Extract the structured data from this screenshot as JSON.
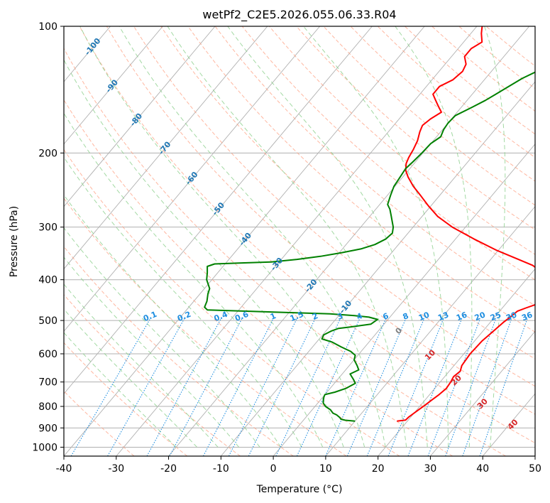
{
  "chart_data": {
    "type": "line",
    "title": "wetPf2_C2E5.2026.055.06.33.R04",
    "xlabel": "Temperature (°C)",
    "ylabel": "Pressure (hPa)",
    "xlim": [
      -40,
      50
    ],
    "ylim": [
      1050,
      100
    ],
    "y_scale": "log",
    "grid": true,
    "x_ticks": [
      -40,
      -30,
      -20,
      -10,
      0,
      10,
      20,
      30,
      40,
      50
    ],
    "y_ticks": [
      1000,
      900,
      800,
      700,
      600,
      500,
      400,
      300,
      200,
      100
    ],
    "colors": {
      "temperature": "#ff0000",
      "dewpoint": "#008000",
      "grid": "#b0b0b0",
      "dry_adiabat": "#ff9f80",
      "moist_adiabat": "#8ccf8c",
      "mixing_ratio": "#1e8ee0",
      "wetbulb_label": "#1f77b4",
      "temp_label": "#d62728",
      "zero_label": "#808080",
      "skewt_iso": "#b0b0b0",
      "curve_guides": "#d8b89a"
    },
    "series": [
      {
        "key": "temperature",
        "points": [
          [
            18,
            867
          ],
          [
            19.5,
            862
          ],
          [
            19.6,
            848
          ],
          [
            20.2,
            820
          ],
          [
            20.8,
            795
          ],
          [
            21.2,
            775
          ],
          [
            21.8,
            750
          ],
          [
            22.2,
            725
          ],
          [
            22.0,
            700
          ],
          [
            21.7,
            680
          ],
          [
            22.1,
            660
          ],
          [
            21.5,
            640
          ],
          [
            21.2,
            600
          ],
          [
            21.4,
            560
          ],
          [
            22.0,
            530
          ],
          [
            22.5,
            505
          ],
          [
            23.0,
            490
          ],
          [
            23.4,
            475
          ],
          [
            24.5,
            467
          ],
          [
            26.3,
            455
          ],
          [
            27.2,
            442
          ],
          [
            25.5,
            425
          ],
          [
            24.0,
            412
          ],
          [
            23.5,
            400
          ],
          [
            22.0,
            385
          ],
          [
            19.0,
            370
          ],
          [
            15.0,
            357
          ],
          [
            9.5,
            340
          ],
          [
            3.5,
            320
          ],
          [
            -2.5,
            300
          ],
          [
            -7.0,
            283
          ],
          [
            -10.5,
            267
          ],
          [
            -13.5,
            253
          ],
          [
            -16.5,
            240
          ],
          [
            -19.0,
            228
          ],
          [
            -20.5,
            220
          ],
          [
            -21.5,
            212
          ],
          [
            -22.0,
            205
          ],
          [
            -22.4,
            196
          ],
          [
            -23.0,
            187
          ],
          [
            -24.0,
            178
          ],
          [
            -24.5,
            172
          ],
          [
            -24.0,
            166
          ],
          [
            -23.0,
            160
          ],
          [
            -24.5,
            155
          ],
          [
            -26.0,
            150
          ],
          [
            -27.5,
            145
          ],
          [
            -27.5,
            139
          ],
          [
            -26.0,
            134
          ],
          [
            -25.5,
            128
          ],
          [
            -26.0,
            123
          ],
          [
            -27.5,
            118
          ],
          [
            -27.5,
            113
          ],
          [
            -26.5,
            109
          ],
          [
            -28.0,
            104
          ],
          [
            -29.0,
            100
          ]
        ]
      },
      {
        "key": "dewpoint",
        "points": [
          [
            10.0,
            867
          ],
          [
            8.0,
            863
          ],
          [
            7.0,
            858
          ],
          [
            6.5,
            850
          ],
          [
            5.5,
            838
          ],
          [
            4.5,
            830
          ],
          [
            3.5,
            815
          ],
          [
            2.0,
            800
          ],
          [
            1.0,
            785
          ],
          [
            0.5,
            770
          ],
          [
            0.2,
            760
          ],
          [
            0.0,
            750
          ],
          [
            1.5,
            740
          ],
          [
            3.0,
            725
          ],
          [
            4.0,
            705
          ],
          [
            3.0,
            690
          ],
          [
            1.5,
            670
          ],
          [
            2.5,
            655
          ],
          [
            1.5,
            640
          ],
          [
            0.0,
            620
          ],
          [
            -0.5,
            605
          ],
          [
            -2.0,
            592
          ],
          [
            -4.5,
            578
          ],
          [
            -7.0,
            563
          ],
          [
            -9.5,
            553
          ],
          [
            -9.8,
            541
          ],
          [
            -9.0,
            530
          ],
          [
            -8.0,
            522
          ],
          [
            -6.0,
            518
          ],
          [
            -2.5,
            510
          ],
          [
            -2.0,
            497
          ],
          [
            -4.0,
            491
          ],
          [
            -7.0,
            487
          ],
          [
            -12.0,
            482
          ],
          [
            -22.0,
            478
          ],
          [
            -36.0,
            472
          ],
          [
            -37.0,
            465
          ],
          [
            -37.5,
            450
          ],
          [
            -38.5,
            432
          ],
          [
            -39.0,
            420
          ],
          [
            -41.0,
            400
          ],
          [
            -42.0,
            385
          ],
          [
            -43.0,
            372
          ],
          [
            -42.0,
            367
          ],
          [
            -37.0,
            365
          ],
          [
            -31.5,
            363
          ],
          [
            -27.0,
            358
          ],
          [
            -23.0,
            352
          ],
          [
            -19.5,
            345
          ],
          [
            -16.5,
            338
          ],
          [
            -14.5,
            330
          ],
          [
            -13.3,
            320
          ],
          [
            -13.0,
            310
          ],
          [
            -13.8,
            300
          ],
          [
            -15.0,
            290
          ],
          [
            -16.0,
            282
          ],
          [
            -17.3,
            272
          ],
          [
            -18.5,
            265
          ],
          [
            -19.4,
            252
          ],
          [
            -20.2,
            240
          ],
          [
            -20.5,
            228
          ],
          [
            -20.8,
            218
          ],
          [
            -20.5,
            210
          ],
          [
            -20.2,
            200
          ],
          [
            -20.0,
            190
          ],
          [
            -19.2,
            183
          ],
          [
            -19.8,
            176
          ],
          [
            -20.0,
            170
          ],
          [
            -19.8,
            163
          ],
          [
            -18.0,
            156
          ],
          [
            -16.5,
            150
          ],
          [
            -15.5,
            145
          ],
          [
            -14.5,
            140
          ],
          [
            -13.0,
            133
          ],
          [
            -11.0,
            127
          ],
          [
            -9.5,
            121
          ],
          [
            -8.3,
            114
          ],
          [
            -7.5,
            108
          ],
          [
            -5.5,
            104
          ],
          [
            -4.5,
            100
          ]
        ]
      }
    ],
    "wetbulb_labels": [
      {
        "t": -100,
        "p": 112
      },
      {
        "t": -90,
        "p": 139
      },
      {
        "t": -80,
        "p": 167
      },
      {
        "t": -70,
        "p": 195
      },
      {
        "t": -60,
        "p": 230
      },
      {
        "t": -50,
        "p": 272
      },
      {
        "t": -40,
        "p": 321
      },
      {
        "t": -30,
        "p": 368
      },
      {
        "t": -20,
        "p": 414
      },
      {
        "t": -10,
        "p": 465
      }
    ],
    "dry_adiabat_labels": [
      {
        "t": 0,
        "x": 24,
        "p": 530,
        "color_key": "zero_label"
      },
      {
        "t": 10,
        "x": 30,
        "p": 605,
        "color_key": "temp_label"
      },
      {
        "t": 20,
        "x": 35,
        "p": 695,
        "color_key": "temp_label"
      },
      {
        "t": 30,
        "x": 40,
        "p": 790,
        "color_key": "temp_label"
      },
      {
        "t": 40,
        "x": 45.8,
        "p": 885,
        "color_key": "temp_label"
      }
    ],
    "mixing_ratio_labels": [
      {
        "w": 0.1,
        "x": -23.5
      },
      {
        "w": 0.2,
        "x": -17
      },
      {
        "w": 0.4,
        "x": -10
      },
      {
        "w": 0.6,
        "x": -6
      },
      {
        "w": 1,
        "x": 0
      },
      {
        "w": 1.5,
        "x": 4.5
      },
      {
        "w": 2,
        "x": 8
      },
      {
        "w": 3,
        "x": 12.8
      },
      {
        "w": 4,
        "x": 16.5
      },
      {
        "w": 6,
        "x": 21.5
      },
      {
        "w": 8,
        "x": 25.3
      },
      {
        "w": 10,
        "x": 28.8
      },
      {
        "w": 13,
        "x": 32.5
      },
      {
        "w": 16,
        "x": 36
      },
      {
        "w": 20,
        "x": 39.5
      },
      {
        "w": 25,
        "x": 42.5
      },
      {
        "w": 30,
        "x": 45.5
      },
      {
        "w": 36,
        "x": 48.5
      }
    ]
  }
}
